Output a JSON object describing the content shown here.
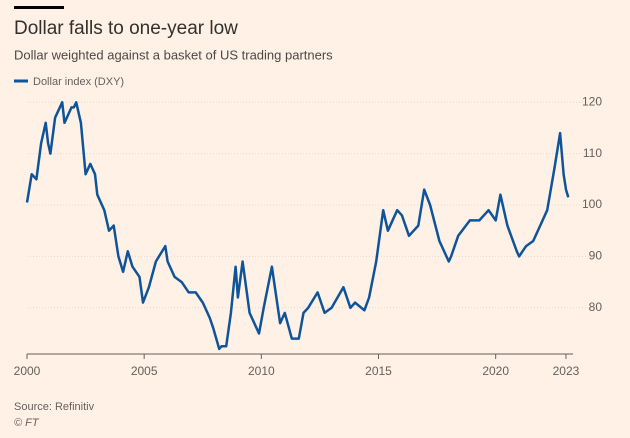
{
  "chart_data": {
    "type": "line",
    "title": "Dollar falls to one-year low",
    "subtitle": "Dollar weighted against a basket of US trading partners",
    "source": "Source: Refinitiv",
    "credit": "© FT",
    "x": [
      2000.0,
      2000.2,
      2000.4,
      2000.6,
      2000.8,
      2000.9,
      2001.0,
      2001.2,
      2001.5,
      2001.6,
      2001.9,
      2002.0,
      2002.1,
      2002.3,
      2002.5,
      2002.7,
      2002.9,
      2003.0,
      2003.3,
      2003.5,
      2003.7,
      2003.9,
      2004.1,
      2004.3,
      2004.5,
      2004.8,
      2004.95,
      2005.2,
      2005.5,
      2005.9,
      2006.0,
      2006.3,
      2006.6,
      2006.9,
      2007.2,
      2007.5,
      2007.8,
      2007.95,
      2008.2,
      2008.3,
      2008.5,
      2008.7,
      2008.9,
      2009.0,
      2009.2,
      2009.5,
      2009.9,
      2010.1,
      2010.45,
      2010.8,
      2011.0,
      2011.3,
      2011.6,
      2011.8,
      2012.0,
      2012.4,
      2012.7,
      2013.0,
      2013.5,
      2013.8,
      2014.0,
      2014.4,
      2014.6,
      2014.9,
      2015.2,
      2015.4,
      2015.8,
      2016.0,
      2016.3,
      2016.7,
      2016.95,
      2017.2,
      2017.6,
      2018.0,
      2018.1,
      2018.4,
      2018.9,
      2019.3,
      2019.7,
      2020.0,
      2020.2,
      2020.5,
      2020.9,
      2021.0,
      2021.3,
      2021.6,
      2021.9,
      2022.2,
      2022.5,
      2022.75,
      2022.9,
      2023.0,
      2023.1
    ],
    "series": [
      {
        "name": "Dollar index (DXY)",
        "color": "#0f5499",
        "values": [
          100.5,
          106,
          105,
          112,
          116,
          112,
          110,
          117,
          120,
          116,
          119,
          119,
          120,
          116,
          106,
          108,
          106,
          102,
          99,
          95,
          96,
          90,
          87,
          91,
          88,
          86,
          81,
          84,
          89,
          92,
          89,
          86,
          85,
          83,
          83,
          81,
          78,
          76,
          72,
          72.5,
          72.5,
          79,
          88,
          82,
          89,
          79,
          75,
          80,
          88,
          77,
          79,
          74,
          74,
          79,
          80,
          83,
          79,
          80,
          84,
          80,
          81,
          79.5,
          82,
          89,
          99,
          95,
          99,
          98,
          94,
          96,
          103,
          100,
          93,
          89,
          90,
          94,
          97,
          97,
          99,
          97,
          102,
          96,
          91,
          90,
          92,
          93,
          96,
          99,
          107,
          114,
          106,
          103,
          101.5
        ]
      }
    ],
    "xlim": [
      2000,
      2023.3
    ],
    "xticks": [
      2000,
      2005,
      2010,
      2015,
      2020,
      2023
    ],
    "ylim": [
      71,
      122
    ],
    "yticks": [
      80,
      90,
      100,
      110,
      120
    ],
    "grid": true
  }
}
